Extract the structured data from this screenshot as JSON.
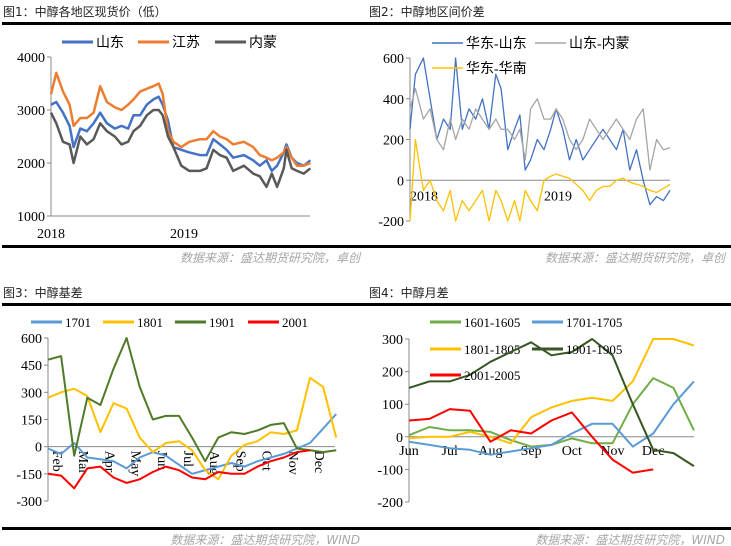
{
  "panels": [
    {
      "title": "图1：中醇各地区现货价（低）",
      "source": "数据来源：盛达期货研究院，卓创"
    },
    {
      "title": "图2：中醇地区间价差",
      "source": "数据来源：盛达期货研究院，卓创"
    },
    {
      "title": "图3：中醇基差",
      "source": "数据来源：盛达期货研究院，WIND"
    },
    {
      "title": "图4：中醇月差",
      "source": "数据来源：盛达期货研究院，WIND"
    }
  ],
  "chart_data": [
    {
      "type": "line",
      "ylim": [
        1000,
        4000
      ],
      "yticks": [
        1000,
        2000,
        3000,
        4000
      ],
      "xticks": [
        {
          "x": 2018,
          "label": "2018"
        },
        {
          "x": 2019,
          "label": "2019"
        }
      ],
      "legend": "top",
      "x": [
        2018.0,
        2018.04,
        2018.09,
        2018.14,
        2018.17,
        2018.22,
        2018.27,
        2018.32,
        2018.37,
        2018.42,
        2018.48,
        2018.53,
        2018.58,
        2018.62,
        2018.67,
        2018.72,
        2018.77,
        2018.81,
        2018.84,
        2018.88,
        2018.92,
        2018.98,
        2019.04,
        2019.12,
        2019.17,
        2019.22,
        2019.27,
        2019.32,
        2019.37,
        2019.45,
        2019.52,
        2019.57,
        2019.62,
        2019.66,
        2019.7,
        2019.75,
        2019.77,
        2019.81,
        2019.85,
        2019.9,
        2019.95
      ],
      "series": [
        {
          "name": "山东",
          "color": "#4472C4",
          "values": [
            3100,
            3150,
            2950,
            2700,
            2300,
            2650,
            2600,
            2750,
            2950,
            2750,
            2650,
            2700,
            2650,
            2900,
            2900,
            3100,
            3200,
            3250,
            3100,
            2800,
            2300,
            2250,
            2200,
            2150,
            2150,
            2450,
            2350,
            2250,
            2100,
            2150,
            2050,
            1950,
            2050,
            1850,
            1950,
            2200,
            2350,
            2100,
            2000,
            1950,
            2050
          ]
        },
        {
          "name": "江苏",
          "color": "#ED7D31",
          "values": [
            3300,
            3700,
            3350,
            3100,
            2700,
            2850,
            2850,
            2950,
            3450,
            3150,
            3050,
            3000,
            3100,
            3200,
            3350,
            3400,
            3450,
            3500,
            3300,
            2600,
            2400,
            2300,
            2400,
            2450,
            2450,
            2600,
            2500,
            2450,
            2350,
            2400,
            2300,
            2150,
            2100,
            2050,
            2100,
            2200,
            2300,
            2100,
            1950,
            1950,
            2000
          ]
        },
        {
          "name": "内蒙",
          "color": "#595959",
          "values": [
            2950,
            2750,
            2400,
            2350,
            2000,
            2500,
            2350,
            2450,
            2750,
            2600,
            2500,
            2350,
            2400,
            2600,
            2700,
            2900,
            3000,
            3000,
            2900,
            2500,
            2300,
            1950,
            1850,
            1850,
            1900,
            2250,
            2150,
            2100,
            1850,
            1950,
            1800,
            1750,
            1550,
            1800,
            1550,
            1900,
            2250,
            1900,
            1850,
            1800,
            1900
          ]
        }
      ]
    },
    {
      "type": "line",
      "ylim": [
        -200,
        600
      ],
      "yticks": [
        -200,
        0,
        200,
        400,
        600
      ],
      "xticks": [
        {
          "x": 2018,
          "label": "2018"
        },
        {
          "x": 2019,
          "label": "2019"
        }
      ],
      "legend": "top",
      "x": [
        2018.0,
        2018.04,
        2018.1,
        2018.15,
        2018.2,
        2018.25,
        2018.3,
        2018.34,
        2018.39,
        2018.44,
        2018.49,
        2018.54,
        2018.59,
        2018.64,
        2018.68,
        2018.73,
        2018.78,
        2018.82,
        2018.86,
        2018.9,
        2018.95,
        2019.0,
        2019.05,
        2019.09,
        2019.14,
        2019.19,
        2019.24,
        2019.29,
        2019.34,
        2019.39,
        2019.44,
        2019.49,
        2019.54,
        2019.59,
        2019.64,
        2019.69,
        2019.74,
        2019.79,
        2019.84,
        2019.89,
        2019.94
      ],
      "series": [
        {
          "name": "华东-山东",
          "color": "#4472C4",
          "values": [
            250,
            520,
            600,
            400,
            200,
            300,
            250,
            600,
            250,
            350,
            300,
            400,
            250,
            520,
            450,
            150,
            250,
            320,
            50,
            100,
            200,
            150,
            250,
            350,
            250,
            100,
            200,
            100,
            150,
            200,
            250,
            200,
            150,
            250,
            50,
            150,
            0,
            -120,
            -80,
            -100,
            -50
          ]
        },
        {
          "name": "山东-内蒙",
          "color": "#A5A5A5",
          "values": [
            350,
            450,
            300,
            350,
            200,
            150,
            300,
            200,
            300,
            250,
            350,
            300,
            250,
            300,
            250,
            250,
            200,
            250,
            100,
            350,
            400,
            300,
            300,
            350,
            300,
            200,
            150,
            200,
            300,
            250,
            200,
            250,
            300,
            250,
            200,
            300,
            350,
            50,
            200,
            150,
            160
          ]
        },
        {
          "name": "华东-华南",
          "color": "#FFC000",
          "values": [
            -200,
            200,
            -50,
            0,
            -100,
            -150,
            -50,
            -200,
            -100,
            -150,
            -100,
            -50,
            -200,
            -50,
            -100,
            -200,
            -100,
            -200,
            -50,
            -100,
            -150,
            0,
            20,
            30,
            20,
            10,
            -20,
            -50,
            -100,
            -50,
            -30,
            -30,
            0,
            10,
            -10,
            -20,
            -30,
            -50,
            -60,
            -40,
            -20
          ]
        }
      ]
    },
    {
      "type": "line",
      "ylim": [
        -300,
        600
      ],
      "yticks": [
        -300,
        -150,
        0,
        150,
        300,
        450,
        600
      ],
      "xticks": [
        {
          "x": 2,
          "label": "Feb"
        },
        {
          "x": 3,
          "label": "Mar"
        },
        {
          "x": 4,
          "label": "Apr"
        },
        {
          "x": 5,
          "label": "May"
        },
        {
          "x": 6,
          "label": "Jun"
        },
        {
          "x": 7,
          "label": "Jul"
        },
        {
          "x": 8,
          "label": "Aug"
        },
        {
          "x": 9,
          "label": "Sep"
        },
        {
          "x": 10,
          "label": "Oct"
        },
        {
          "x": 11,
          "label": "Nov"
        },
        {
          "x": 12,
          "label": "Dec"
        }
      ],
      "legend": "top",
      "x": [
        2,
        2.5,
        3,
        3.5,
        4,
        4.5,
        5,
        5.5,
        6,
        6.5,
        7,
        7.5,
        8,
        8.5,
        9,
        9.5,
        10,
        10.5,
        11,
        11.5,
        12,
        12.5,
        13
      ],
      "series": [
        {
          "name": "1701",
          "color": "#5B9BD5",
          "values": [
            -10,
            -40,
            20,
            -60,
            -70,
            -80,
            -120,
            -60,
            -30,
            -50,
            -100,
            -150,
            -130,
            -110,
            -90,
            -110,
            -80,
            -60,
            -40,
            -10,
            20,
            100,
            180
          ]
        },
        {
          "name": "1801",
          "color": "#FFC000",
          "values": [
            270,
            300,
            320,
            280,
            80,
            240,
            210,
            50,
            -30,
            20,
            30,
            -20,
            -130,
            -180,
            -50,
            10,
            30,
            80,
            70,
            90,
            380,
            330,
            50
          ]
        },
        {
          "name": "1901",
          "color": "#4F7A28",
          "values": [
            480,
            500,
            -50,
            270,
            230,
            430,
            600,
            330,
            150,
            170,
            170,
            50,
            -80,
            50,
            80,
            70,
            90,
            120,
            130,
            -10,
            -20,
            -30,
            -20
          ]
        },
        {
          "name": "2001",
          "color": "#FF0000",
          "values": [
            -150,
            -160,
            -230,
            -120,
            -110,
            -170,
            -200,
            -180,
            -140,
            -110,
            -130,
            -170,
            -180,
            -140,
            -150,
            -150,
            -110,
            -80,
            -60,
            -30,
            -20,
            null,
            null
          ]
        }
      ]
    },
    {
      "type": "line",
      "ylim": [
        -200,
        300
      ],
      "yticks": [
        -200,
        -100,
        0,
        100,
        200,
        300
      ],
      "xticks": [
        {
          "x": 6,
          "label": "Jun"
        },
        {
          "x": 7,
          "label": "Jul"
        },
        {
          "x": 8,
          "label": "Aug"
        },
        {
          "x": 9,
          "label": "Sep"
        },
        {
          "x": 10,
          "label": "Oct"
        },
        {
          "x": 11,
          "label": "Nov"
        },
        {
          "x": 12,
          "label": "Dec"
        }
      ],
      "legend": "top",
      "x": [
        6,
        6.5,
        7,
        7.5,
        8,
        8.5,
        9,
        9.5,
        10,
        10.5,
        11,
        11.5,
        12,
        12.5,
        13
      ],
      "series": [
        {
          "name": "1601-1605",
          "color": "#70AD47",
          "values": [
            5,
            30,
            20,
            20,
            15,
            -10,
            -30,
            -25,
            -5,
            -20,
            -20,
            100,
            180,
            150,
            20
          ]
        },
        {
          "name": "1701-1705",
          "color": "#5B9BD5",
          "values": [
            -15,
            -25,
            -35,
            -40,
            -55,
            -45,
            -35,
            -25,
            10,
            40,
            40,
            -30,
            10,
            100,
            170
          ]
        },
        {
          "name": "1801-1805",
          "color": "#FFC000",
          "values": [
            -5,
            0,
            0,
            15,
            0,
            -20,
            60,
            90,
            110,
            120,
            110,
            170,
            300,
            300,
            280
          ]
        },
        {
          "name": "1901-1905",
          "color": "#375623",
          "values": [
            150,
            170,
            170,
            190,
            230,
            260,
            290,
            250,
            260,
            300,
            250,
            100,
            -40,
            -50,
            -90
          ]
        },
        {
          "name": "2001-2005",
          "color": "#FF0000",
          "values": [
            50,
            55,
            85,
            80,
            -15,
            20,
            10,
            50,
            75,
            0,
            -70,
            -110,
            -100,
            null,
            null
          ]
        }
      ]
    }
  ]
}
